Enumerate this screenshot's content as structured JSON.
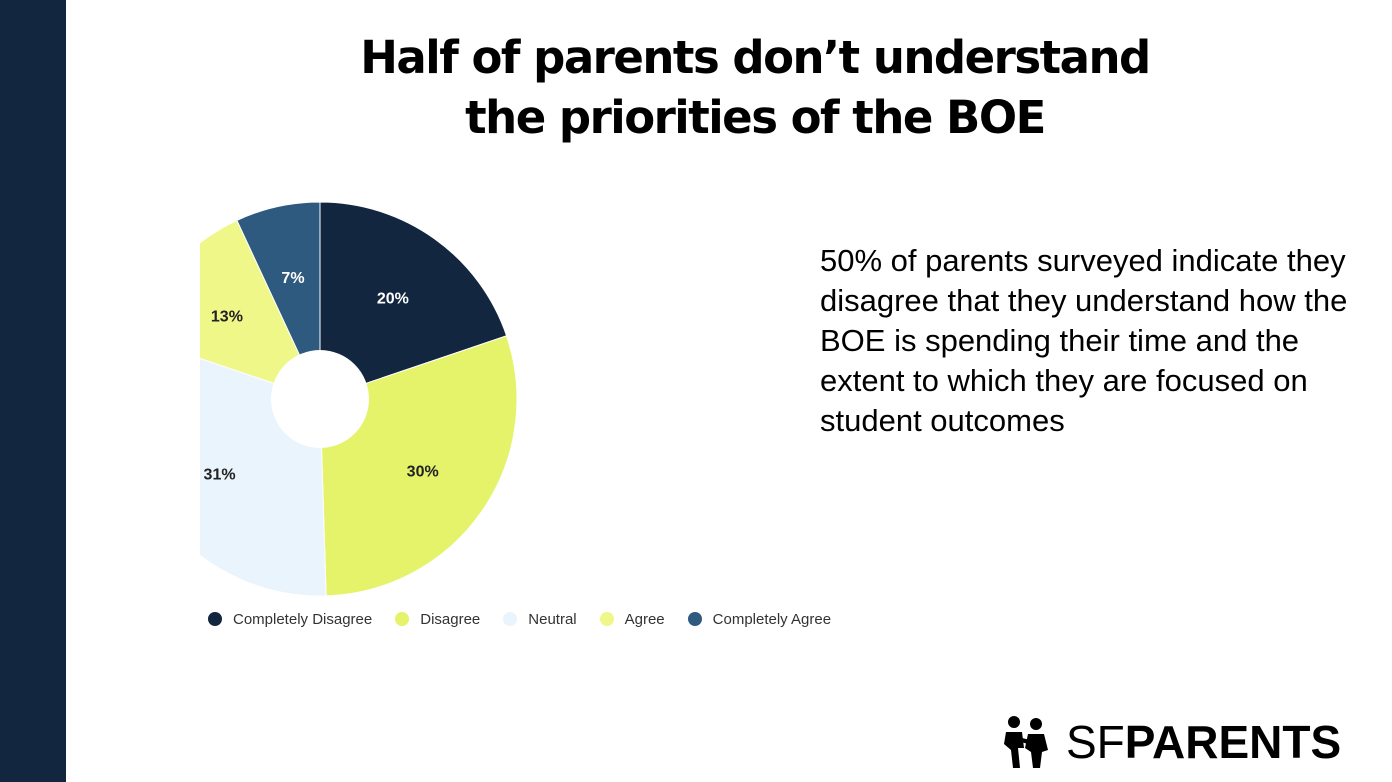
{
  "slide": {
    "title_line1": "Half of parents don’t understand",
    "title_line2": "the priorities of the BOE",
    "description": "50% of parents surveyed indicate they disagree that they understand how the BOE is spending their time and the extent to which they are focused on student outcomes",
    "sidebar_color": "#12263f"
  },
  "logo": {
    "text_light": "SF",
    "text_bold": "PARENTS",
    "icon": "family-figures-icon"
  },
  "chart_data": {
    "type": "pie",
    "donut": true,
    "title": "",
    "legend_position": "bottom",
    "categories": [
      "Completely Disagree",
      "Disagree",
      "Neutral",
      "Agree",
      "Completely Agree"
    ],
    "values": [
      20,
      30,
      31,
      13,
      7
    ],
    "labels": [
      "20%",
      "30%",
      "31%",
      "13%",
      "7%"
    ],
    "colors": [
      "#12263f",
      "#e4f36a",
      "#eaf4fc",
      "#eef788",
      "#2e5a80"
    ],
    "label_colors": [
      "#ffffff",
      "#222222",
      "#222222",
      "#222222",
      "#ffffff"
    ]
  }
}
